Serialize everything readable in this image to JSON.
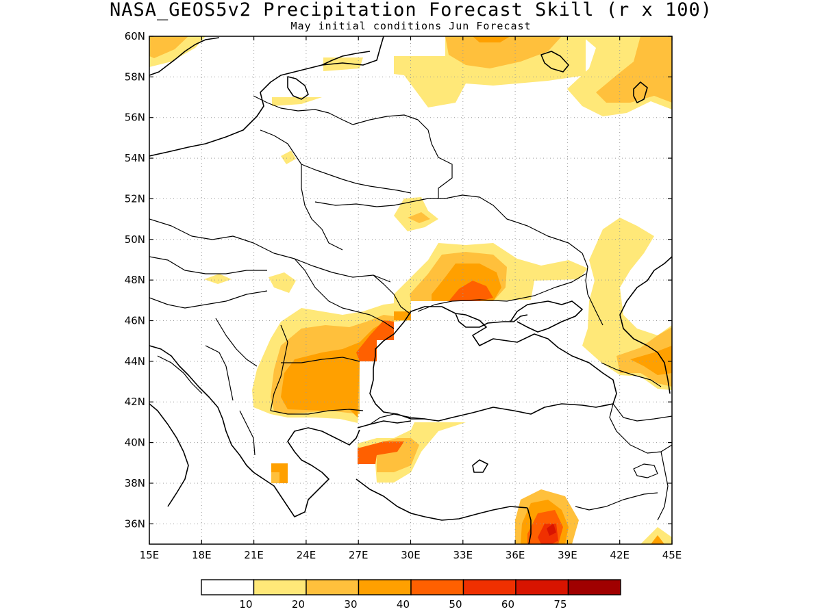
{
  "title": "NASA_GEOS5v2 Precipitation Forecast Skill (r x 100)",
  "subtitle": "May initial conditions  Jun Forecast",
  "map": {
    "lon_range": [
      15,
      45
    ],
    "lat_range": [
      35,
      60
    ],
    "grid": true,
    "lon_ticks": [
      "15E",
      "18E",
      "21E",
      "24E",
      "27E",
      "30E",
      "33E",
      "36E",
      "39E",
      "42E",
      "45E"
    ],
    "lat_ticks": [
      "60N",
      "58N",
      "56N",
      "54N",
      "52N",
      "50N",
      "48N",
      "46N",
      "44N",
      "42N",
      "40N",
      "38N",
      "36N"
    ]
  },
  "colors": {
    "c10": "#ffe878",
    "c20": "#ffc03c",
    "c30": "#ffa000",
    "c40": "#ff6000",
    "c50": "#f03000",
    "c60": "#d81400",
    "c75": "#a00000",
    "line": "#000000",
    "grid": "#999999"
  },
  "colorbar": {
    "labels": [
      "10",
      "20",
      "30",
      "40",
      "50",
      "60",
      "75"
    ],
    "colors": [
      "#ffffff",
      "#ffe878",
      "#ffc03c",
      "#ffa000",
      "#ff6000",
      "#f03000",
      "#d81400",
      "#a00000"
    ]
  }
}
